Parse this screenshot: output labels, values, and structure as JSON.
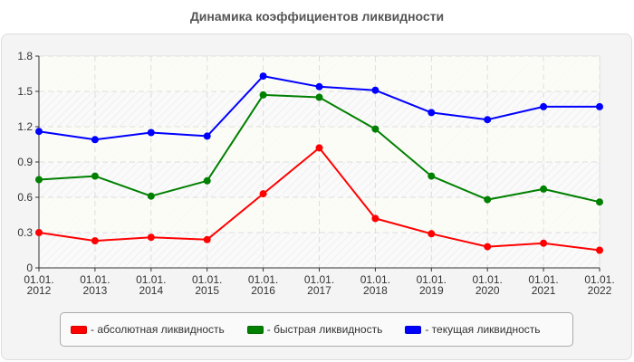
{
  "title": "Динамика коэффициентов ликвидности",
  "legend": [
    {
      "label": "- абсолютная ликвидность",
      "color": "#ff0000"
    },
    {
      "label": "- быстрая ликвидность",
      "color": "#008000"
    },
    {
      "label": "- текущая ликвидность",
      "color": "#0000ff"
    }
  ],
  "chart_data": {
    "type": "line",
    "title": "Динамика коэффициентов ликвидности",
    "xlabel": "",
    "ylabel": "",
    "categories": [
      "01.01.2012",
      "01.01.2013",
      "01.01.2014",
      "01.01.2015",
      "01.01.2016",
      "01.01.2017",
      "01.01.2018",
      "01.01.2019",
      "01.01.2020",
      "01.01.2021",
      "01.01.2022"
    ],
    "category_lines": [
      [
        "01.01.",
        "2012"
      ],
      [
        "01.01.",
        "2013"
      ],
      [
        "01.01.",
        "2014"
      ],
      [
        "01.01.",
        "2015"
      ],
      [
        "01.01.",
        "2016"
      ],
      [
        "01.01.",
        "2017"
      ],
      [
        "01.01.",
        "2018"
      ],
      [
        "01.01.",
        "2019"
      ],
      [
        "01.01.",
        "2020"
      ],
      [
        "01.01.",
        "2021"
      ],
      [
        "01.01.",
        "2022"
      ]
    ],
    "yticks": [
      "0",
      "0.3",
      "0.6",
      "0.9",
      "1.2",
      "1.5",
      "1.8"
    ],
    "ylim": [
      0,
      1.8
    ],
    "grid": true,
    "legend_position": "bottom",
    "series": [
      {
        "name": "абсолютная ликвидность",
        "color": "#ff0000",
        "values": [
          0.3,
          0.23,
          0.26,
          0.24,
          0.63,
          1.02,
          0.42,
          0.29,
          0.18,
          0.21,
          0.15
        ]
      },
      {
        "name": "быстрая ликвидность",
        "color": "#008000",
        "values": [
          0.75,
          0.78,
          0.61,
          0.74,
          1.47,
          1.45,
          1.18,
          0.78,
          0.58,
          0.67,
          0.56
        ]
      },
      {
        "name": "текущая ликвидность",
        "color": "#0000ff",
        "values": [
          1.16,
          1.09,
          1.15,
          1.12,
          1.63,
          1.54,
          1.51,
          1.32,
          1.26,
          1.37,
          1.37
        ]
      }
    ]
  }
}
